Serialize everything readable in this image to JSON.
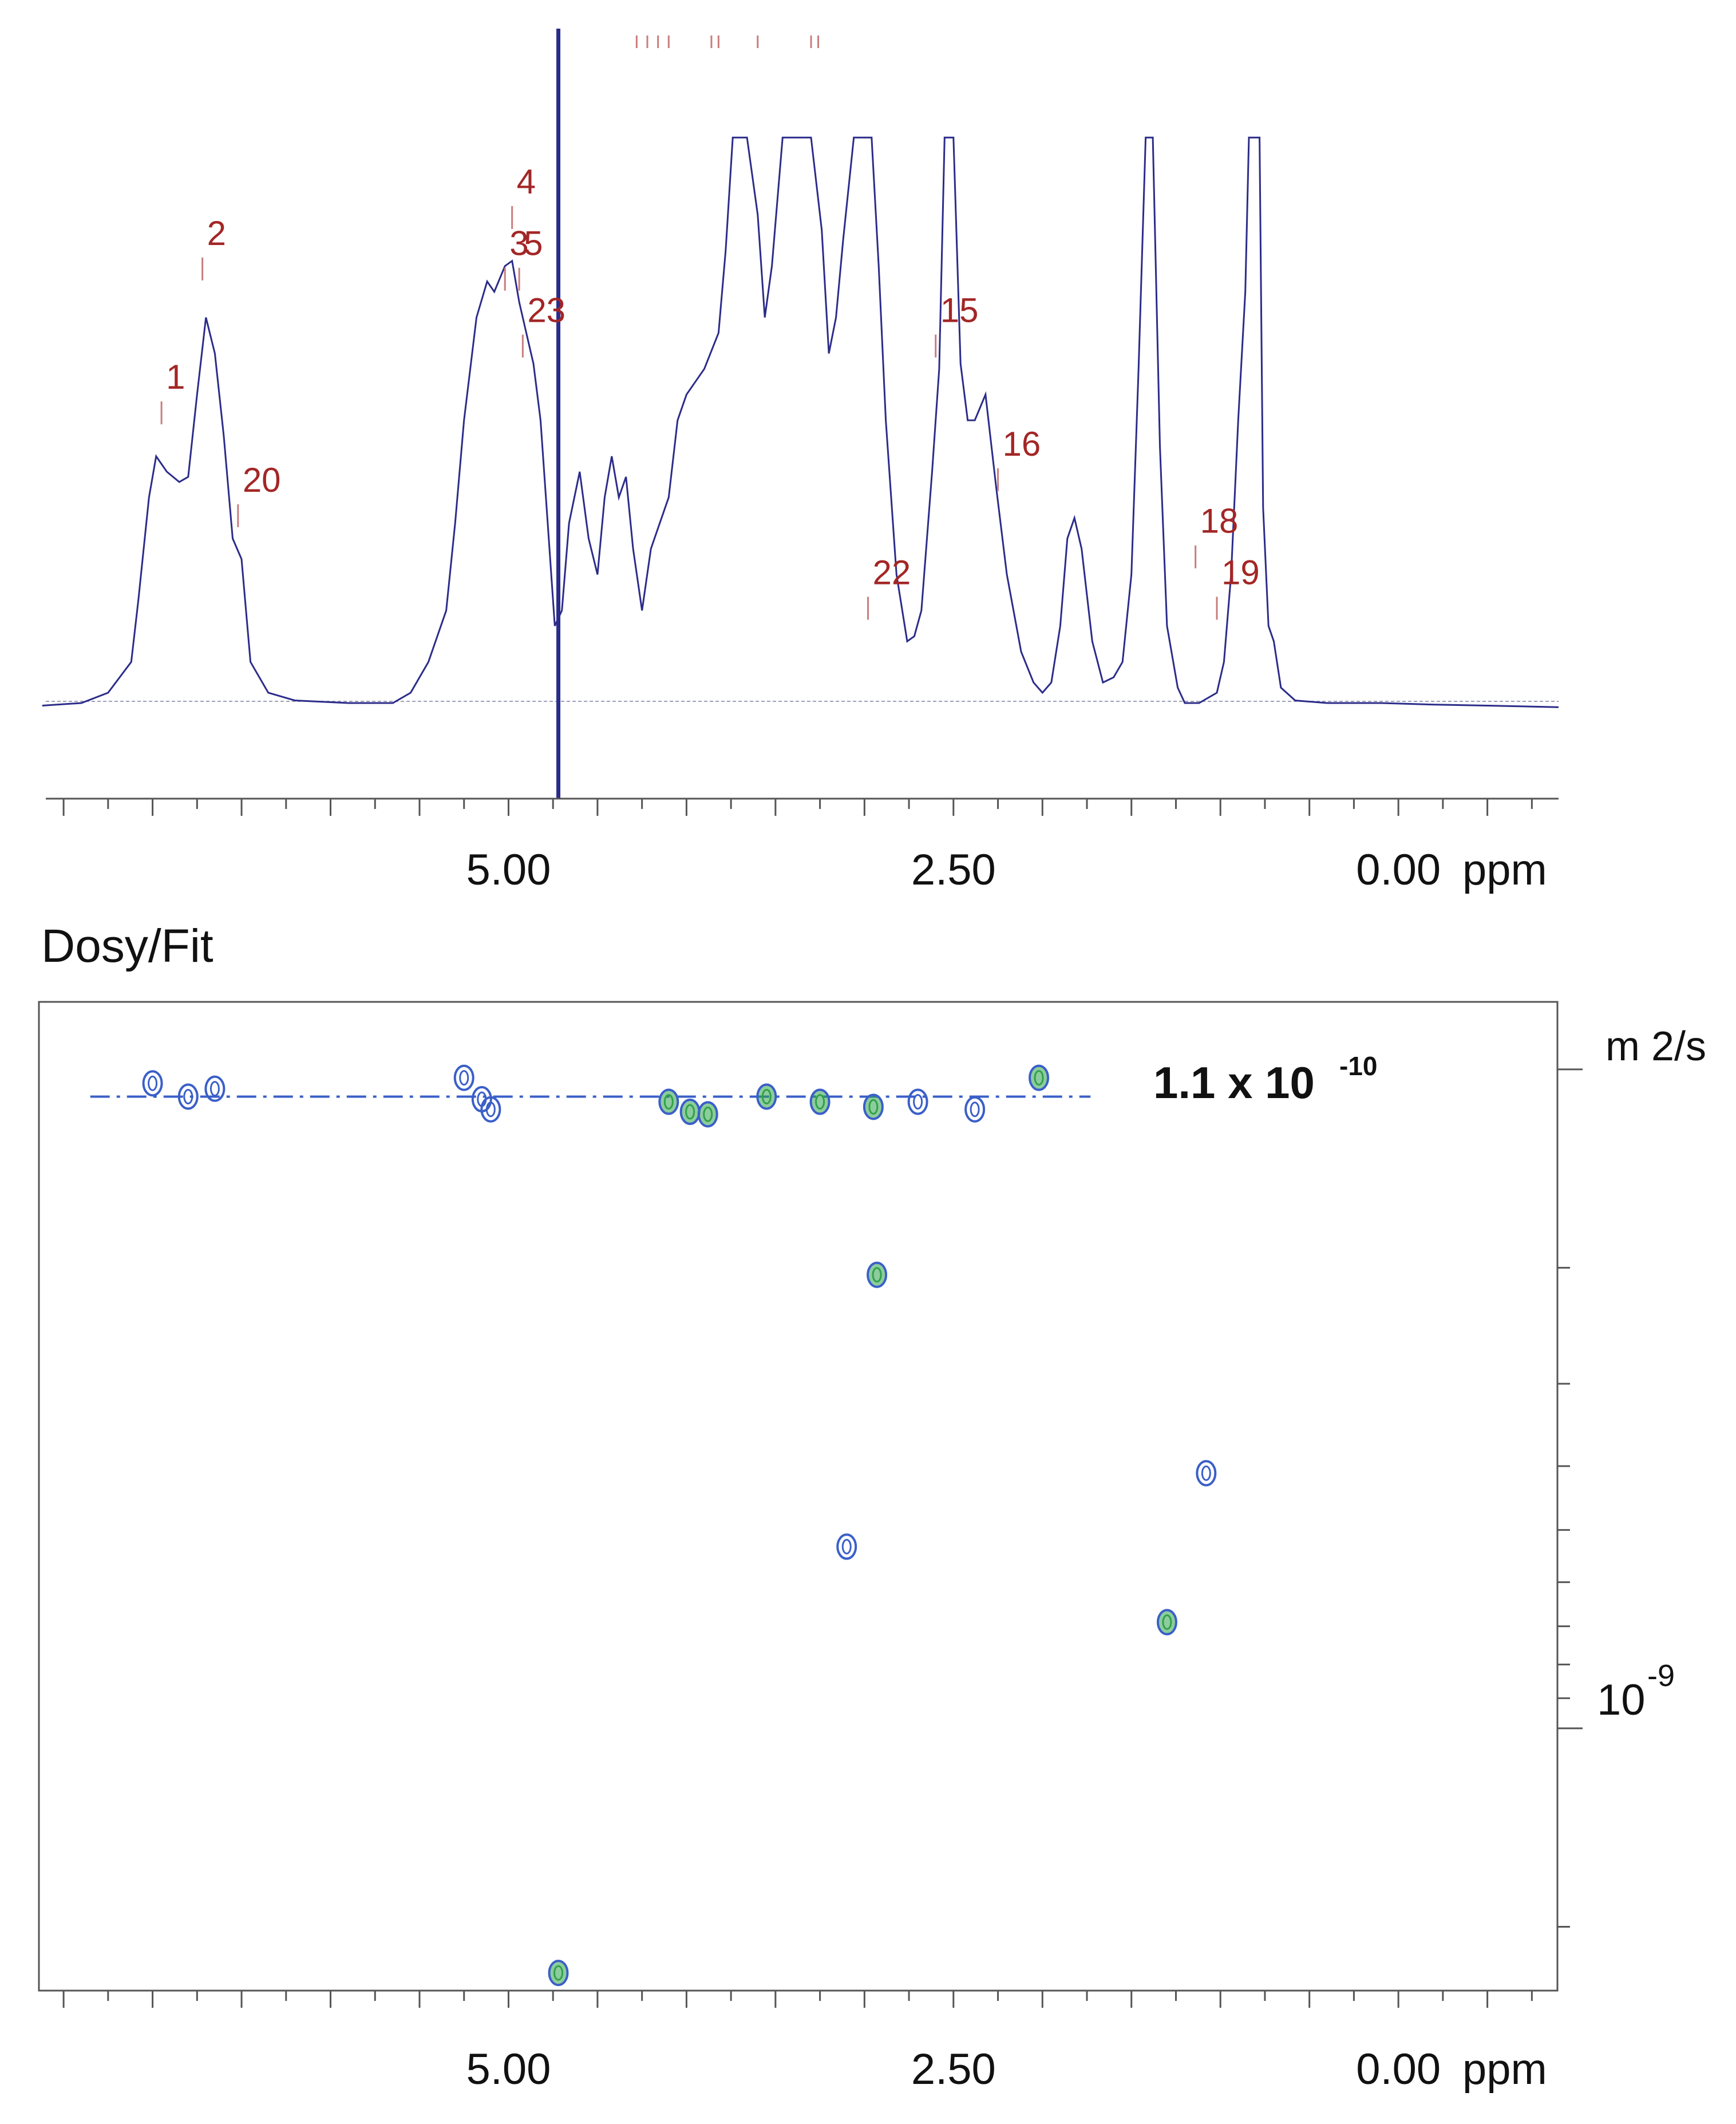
{
  "colors": {
    "spectrum_line": "#2c2c8a",
    "peak_label": "#a32626",
    "tick_mark": "#c87d7d",
    "contour_blue": "#3a5fc8",
    "contour_green": "#2fa24a",
    "frame": "#555555"
  },
  "chart_data": [
    {
      "type": "line",
      "title": "",
      "xlabel": "ppm",
      "x_ticks": [
        {
          "value": 5.0,
          "label": "5.00"
        },
        {
          "value": 2.5,
          "label": "2.50"
        },
        {
          "value": 0.0,
          "label": "0.00"
        }
      ],
      "xlim": [
        7.6,
        -0.9
      ],
      "x_reversed": true,
      "ylim": [
        -0.15,
        1.1
      ],
      "spectrum_points": [
        [
          7.62,
          -0.005
        ],
        [
          7.4,
          0.0
        ],
        [
          7.25,
          0.02
        ],
        [
          7.12,
          0.08
        ],
        [
          7.08,
          0.2
        ],
        [
          7.02,
          0.4
        ],
        [
          6.98,
          0.48
        ],
        [
          6.92,
          0.45
        ],
        [
          6.85,
          0.43
        ],
        [
          6.8,
          0.44
        ],
        [
          6.75,
          0.6
        ],
        [
          6.7,
          0.75
        ],
        [
          6.65,
          0.68
        ],
        [
          6.6,
          0.52
        ],
        [
          6.55,
          0.32
        ],
        [
          6.5,
          0.28
        ],
        [
          6.45,
          0.08
        ],
        [
          6.35,
          0.02
        ],
        [
          6.2,
          0.005
        ],
        [
          5.9,
          0.0
        ],
        [
          5.65,
          0.0
        ],
        [
          5.55,
          0.02
        ],
        [
          5.45,
          0.08
        ],
        [
          5.35,
          0.18
        ],
        [
          5.3,
          0.35
        ],
        [
          5.25,
          0.55
        ],
        [
          5.18,
          0.75
        ],
        [
          5.12,
          0.82
        ],
        [
          5.08,
          0.8
        ],
        [
          5.02,
          0.85
        ],
        [
          4.98,
          0.86
        ],
        [
          4.94,
          0.78
        ],
        [
          4.9,
          0.72
        ],
        [
          4.86,
          0.66
        ],
        [
          4.82,
          0.55
        ],
        [
          4.78,
          0.35
        ],
        [
          4.74,
          0.15
        ],
        [
          4.7,
          0.18
        ],
        [
          4.66,
          0.35
        ],
        [
          4.6,
          0.45
        ],
        [
          4.55,
          0.32
        ],
        [
          4.5,
          0.25
        ],
        [
          4.46,
          0.4
        ],
        [
          4.42,
          0.48
        ],
        [
          4.38,
          0.4
        ],
        [
          4.34,
          0.44
        ],
        [
          4.3,
          0.3
        ],
        [
          4.25,
          0.18
        ],
        [
          4.2,
          0.3
        ],
        [
          4.15,
          0.35
        ],
        [
          4.1,
          0.4
        ],
        [
          4.05,
          0.55
        ],
        [
          4.0,
          0.6
        ],
        [
          3.9,
          0.65
        ],
        [
          3.82,
          0.72
        ],
        [
          3.78,
          0.88
        ],
        [
          3.74,
          1.1
        ],
        [
          3.66,
          1.1
        ],
        [
          3.6,
          0.95
        ],
        [
          3.56,
          0.75
        ],
        [
          3.52,
          0.85
        ],
        [
          3.46,
          1.1
        ],
        [
          3.3,
          1.1
        ],
        [
          3.24,
          0.92
        ],
        [
          3.2,
          0.68
        ],
        [
          3.16,
          0.75
        ],
        [
          3.12,
          0.9
        ],
        [
          3.06,
          1.1
        ],
        [
          2.96,
          1.1
        ],
        [
          2.92,
          0.85
        ],
        [
          2.88,
          0.55
        ],
        [
          2.82,
          0.25
        ],
        [
          2.76,
          0.12
        ],
        [
          2.72,
          0.13
        ],
        [
          2.68,
          0.18
        ],
        [
          2.62,
          0.45
        ],
        [
          2.58,
          0.65
        ],
        [
          2.55,
          1.1
        ],
        [
          2.5,
          1.1
        ],
        [
          2.46,
          0.66
        ],
        [
          2.42,
          0.55
        ],
        [
          2.38,
          0.55
        ],
        [
          2.32,
          0.6
        ],
        [
          2.26,
          0.42
        ],
        [
          2.2,
          0.25
        ],
        [
          2.12,
          0.1
        ],
        [
          2.05,
          0.04
        ],
        [
          2.0,
          0.02
        ],
        [
          1.95,
          0.04
        ],
        [
          1.9,
          0.15
        ],
        [
          1.86,
          0.32
        ],
        [
          1.82,
          0.36
        ],
        [
          1.78,
          0.3
        ],
        [
          1.72,
          0.12
        ],
        [
          1.66,
          0.04
        ],
        [
          1.6,
          0.05
        ],
        [
          1.55,
          0.08
        ],
        [
          1.5,
          0.25
        ],
        [
          1.46,
          0.65
        ],
        [
          1.42,
          1.1
        ],
        [
          1.38,
          1.1
        ],
        [
          1.34,
          0.5
        ],
        [
          1.3,
          0.15
        ],
        [
          1.24,
          0.03
        ],
        [
          1.2,
          0.0
        ],
        [
          1.12,
          0.0
        ],
        [
          1.02,
          0.02
        ],
        [
          0.98,
          0.08
        ],
        [
          0.94,
          0.25
        ],
        [
          0.9,
          0.55
        ],
        [
          0.86,
          0.8
        ],
        [
          0.84,
          1.1
        ],
        [
          0.78,
          1.1
        ],
        [
          0.76,
          0.38
        ],
        [
          0.73,
          0.15
        ],
        [
          0.7,
          0.12
        ],
        [
          0.66,
          0.03
        ],
        [
          0.58,
          0.005
        ],
        [
          0.4,
          0.0
        ],
        [
          0.1,
          0.0
        ],
        [
          -0.2,
          -0.003
        ],
        [
          -0.5,
          -0.005
        ],
        [
          -0.9,
          -0.008
        ]
      ],
      "solvent_line_ppm": 4.72,
      "peak_labels": [
        {
          "label": "1",
          "ppm": 6.95,
          "y": 0.6
        },
        {
          "label": "2",
          "ppm": 6.72,
          "y": 0.88
        },
        {
          "label": "20",
          "ppm": 6.52,
          "y": 0.4
        },
        {
          "label": "4",
          "ppm": 4.98,
          "y": 0.98
        },
        {
          "label": "3",
          "ppm": 5.02,
          "y": 0.86
        },
        {
          "label": "5",
          "ppm": 4.94,
          "y": 0.86
        },
        {
          "label": "23",
          "ppm": 4.92,
          "y": 0.73
        },
        {
          "label": "22",
          "ppm": 2.98,
          "y": 0.22
        },
        {
          "label": "15",
          "ppm": 2.6,
          "y": 0.73
        },
        {
          "label": "16",
          "ppm": 2.25,
          "y": 0.47
        },
        {
          "label": "18",
          "ppm": 1.14,
          "y": 0.32
        },
        {
          "label": "19",
          "ppm": 1.02,
          "y": 0.22
        }
      ],
      "top_tick_ppm": [
        4.28,
        4.22,
        4.16,
        4.1,
        3.86,
        3.82,
        3.6,
        3.3,
        3.26
      ]
    },
    {
      "type": "scatter",
      "title": "Dosy/Fit",
      "xlabel": "ppm",
      "ylabel": "m 2/s",
      "y_scale": "log",
      "x_ticks": [
        {
          "value": 5.0,
          "label": "5.00"
        },
        {
          "value": 2.5,
          "label": "2.50"
        },
        {
          "value": 0.0,
          "label": "0.00"
        }
      ],
      "xlim": [
        7.6,
        -0.9
      ],
      "x_reversed": true,
      "ylim": [
        7.9e-11,
        2.5e-09
      ],
      "y_tick_label": {
        "base": "10",
        "exponent": "-9",
        "value": 1e-09
      },
      "fit_line": {
        "value": 1.1e-10,
        "label": {
          "mantissa": "1.1 x 10",
          "exponent": "-10"
        },
        "x_from": 7.35,
        "x_to": 1.73
      },
      "points": [
        {
          "ppm": 7.0,
          "D": 1.05e-10,
          "color": "blue"
        },
        {
          "ppm": 6.8,
          "D": 1.1e-10,
          "color": "blue"
        },
        {
          "ppm": 6.65,
          "D": 1.07e-10,
          "color": "blue"
        },
        {
          "ppm": 5.25,
          "D": 1.03e-10,
          "color": "blue"
        },
        {
          "ppm": 5.15,
          "D": 1.11e-10,
          "color": "blue"
        },
        {
          "ppm": 5.1,
          "D": 1.15e-10,
          "color": "blue"
        },
        {
          "ppm": 4.1,
          "D": 1.12e-10,
          "color": "green"
        },
        {
          "ppm": 3.98,
          "D": 1.16e-10,
          "color": "green"
        },
        {
          "ppm": 3.88,
          "D": 1.17e-10,
          "color": "green"
        },
        {
          "ppm": 3.55,
          "D": 1.1e-10,
          "color": "green"
        },
        {
          "ppm": 3.25,
          "D": 1.12e-10,
          "color": "green"
        },
        {
          "ppm": 2.95,
          "D": 1.14e-10,
          "color": "green"
        },
        {
          "ppm": 2.7,
          "D": 1.12e-10,
          "color": "blue"
        },
        {
          "ppm": 2.38,
          "D": 1.15e-10,
          "color": "blue"
        },
        {
          "ppm": 2.02,
          "D": 1.03e-10,
          "color": "green"
        },
        {
          "ppm": 2.93,
          "D": 2.05e-10,
          "color": "green"
        },
        {
          "ppm": 1.08,
          "D": 4.1e-10,
          "color": "blue"
        },
        {
          "ppm": 3.1,
          "D": 5.3e-10,
          "color": "blue"
        },
        {
          "ppm": 1.3,
          "D": 6.9e-10,
          "color": "green"
        },
        {
          "ppm": 4.72,
          "D": 2.35e-09,
          "color": "green"
        }
      ]
    }
  ]
}
